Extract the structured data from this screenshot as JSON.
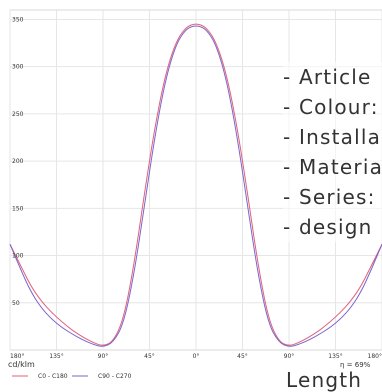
{
  "chart_data": {
    "type": "line",
    "chart_subtype": "polar luminous intensity distribution (unrolled)",
    "ylabel": "cd/klm",
    "ylim": [
      0,
      360
    ],
    "yticks": [
      50,
      100,
      150,
      200,
      250,
      300,
      350
    ],
    "xlim": [
      -180,
      180
    ],
    "xtick_labels": [
      "180°",
      "135°",
      "90°",
      "45°",
      "0°",
      "45°",
      "90°",
      "135°",
      "180°"
    ],
    "x_values": [
      -180,
      -135,
      -90,
      -45,
      0,
      45,
      90,
      135,
      180
    ],
    "grid": true,
    "efficiency_text": "η = 69%",
    "legend_position": "bottom-left",
    "series": [
      {
        "name": "C0 - C180",
        "color": "#e0607a",
        "x": [
          -180,
          -170,
          -160,
          -150,
          -140,
          -130,
          -120,
          -110,
          -100,
          -90,
          -80,
          -70,
          -60,
          -50,
          -40,
          -30,
          -20,
          -10,
          0,
          10,
          20,
          30,
          40,
          50,
          60,
          70,
          80,
          90,
          100,
          110,
          120,
          130,
          140,
          150,
          160,
          170,
          180
        ],
        "values": [
          112,
          90,
          68,
          52,
          40,
          30,
          21,
          14,
          8,
          4,
          9,
          33,
          90,
          165,
          235,
          290,
          325,
          342,
          346,
          342,
          325,
          290,
          235,
          165,
          90,
          33,
          9,
          4,
          8,
          14,
          21,
          30,
          40,
          52,
          68,
          90,
          112
        ]
      },
      {
        "name": "C90 - C270",
        "color": "#7a66cc",
        "x": [
          -180,
          -170,
          -160,
          -150,
          -140,
          -130,
          -120,
          -110,
          -100,
          -90,
          -80,
          -70,
          -60,
          -50,
          -40,
          -30,
          -20,
          -10,
          0,
          10,
          20,
          30,
          40,
          50,
          60,
          70,
          80,
          90,
          100,
          110,
          120,
          130,
          140,
          150,
          160,
          170,
          180
        ],
        "values": [
          112,
          86,
          62,
          45,
          33,
          24,
          17,
          11,
          6,
          3,
          8,
          28,
          80,
          152,
          225,
          284,
          322,
          340,
          344,
          340,
          322,
          284,
          225,
          152,
          80,
          28,
          8,
          3,
          6,
          11,
          17,
          24,
          33,
          45,
          62,
          86,
          112
        ]
      }
    ]
  },
  "overlay": {
    "items": [
      {
        "text": "- Article"
      },
      {
        "text": "- Colour:"
      },
      {
        "text": "- Installa"
      },
      {
        "text": "- Materia"
      },
      {
        "text": "- Series:"
      },
      {
        "text": "- design"
      }
    ],
    "length_text": "Length"
  }
}
